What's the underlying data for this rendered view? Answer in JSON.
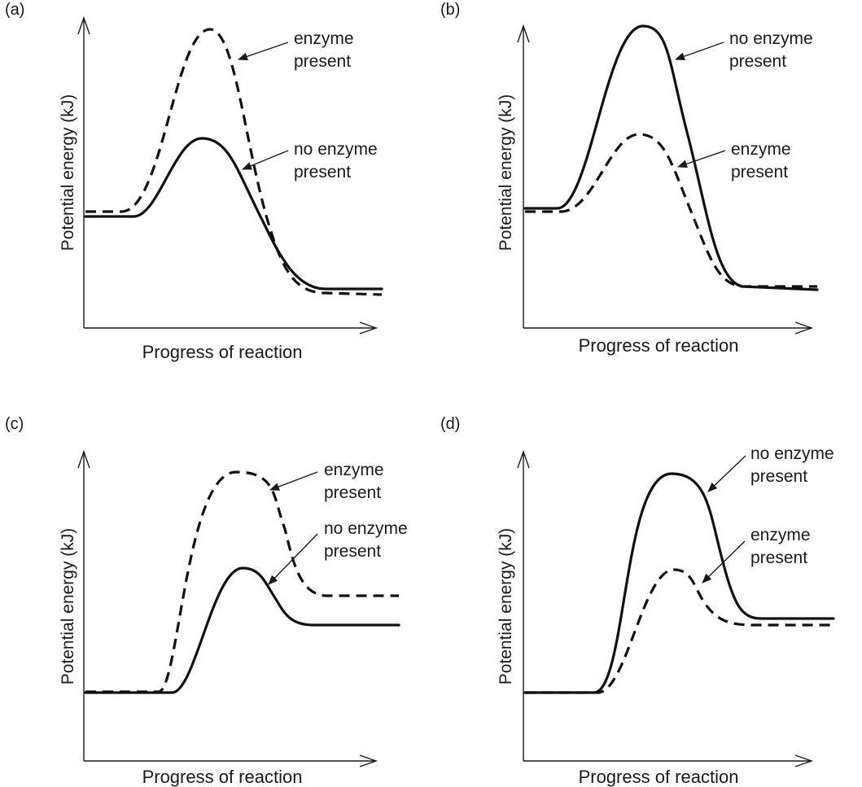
{
  "axes": {
    "x_label": "Progress of reaction",
    "y_label": "Potential energy (kJ)"
  },
  "panels": [
    {
      "id": "a",
      "label": "(a)",
      "curves": {
        "enzyme": {
          "style": "dashed",
          "label_lines": [
            "enzyme",
            "present"
          ]
        },
        "no_enzyme": {
          "style": "solid",
          "label_lines": [
            "no enzyme",
            "present"
          ]
        }
      }
    },
    {
      "id": "b",
      "label": "(b)",
      "curves": {
        "enzyme": {
          "style": "dashed",
          "label_lines": [
            "enzyme",
            "present"
          ]
        },
        "no_enzyme": {
          "style": "solid",
          "label_lines": [
            "no enzyme",
            "present"
          ]
        }
      }
    },
    {
      "id": "c",
      "label": "(c)",
      "curves": {
        "enzyme": {
          "style": "dashed",
          "label_lines": [
            "enzyme",
            "present"
          ]
        },
        "no_enzyme": {
          "style": "solid",
          "label_lines": [
            "no enzyme",
            "present"
          ]
        }
      }
    },
    {
      "id": "d",
      "label": "(d)",
      "curves": {
        "enzyme": {
          "style": "dashed",
          "label_lines": [
            "enzyme",
            "present"
          ]
        },
        "no_enzyme": {
          "style": "solid",
          "label_lines": [
            "no enzyme",
            "present"
          ]
        }
      }
    }
  ]
}
